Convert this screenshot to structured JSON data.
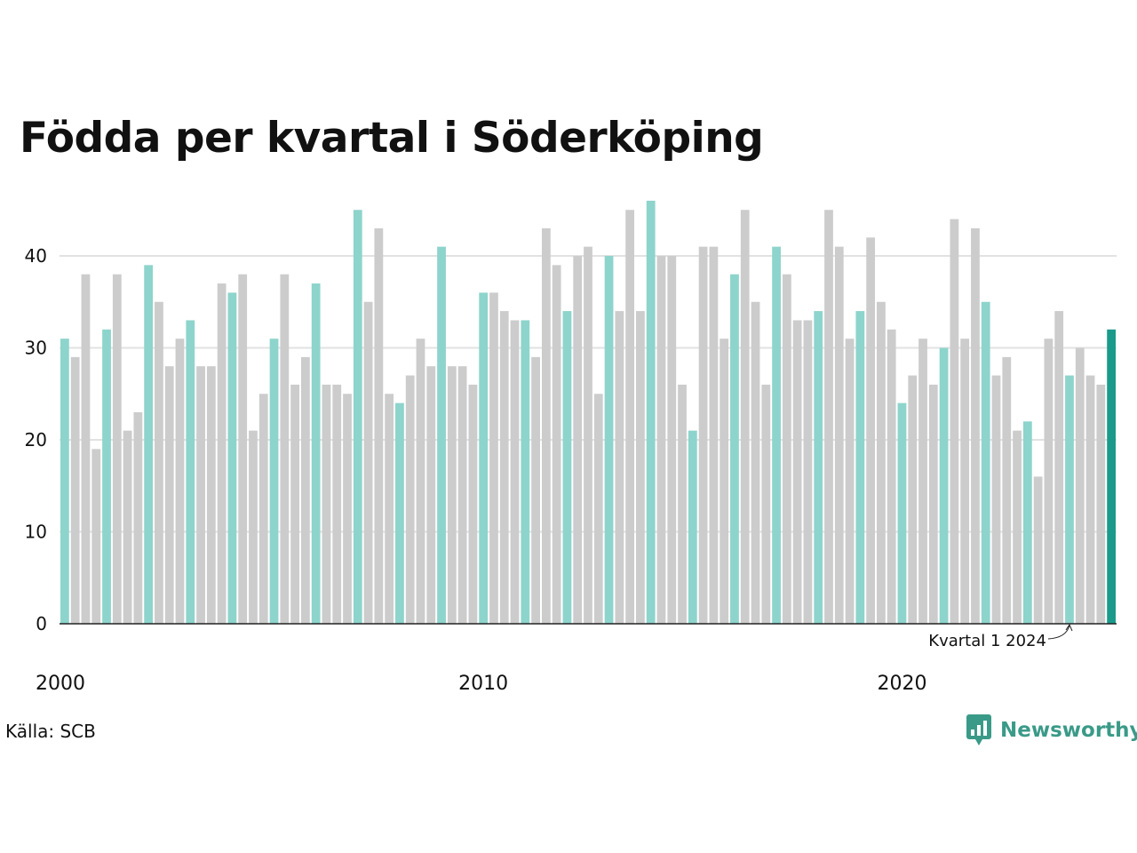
{
  "title": "Födda per kvartal i Söderköping",
  "source": "Källa: SCB",
  "logo_text": "Newsworthy",
  "colors": {
    "q1": "#8dd4cc",
    "other": "#cccccc",
    "latest": "#1a9a8a",
    "axis": "#222222",
    "grid": "#e2e2e2"
  },
  "chart_data": {
    "type": "bar",
    "ylim": [
      0,
      46
    ],
    "yticks": [
      0,
      10,
      20,
      30,
      40
    ],
    "xticks": [
      "2000",
      "2010",
      "2020"
    ],
    "grid": true,
    "annotation": {
      "text": "Kvartal 1 2024"
    },
    "periods": [
      "2000 Q1",
      "2000 Q2",
      "2000 Q3",
      "2000 Q4",
      "2001 Q1",
      "2001 Q2",
      "2001 Q3",
      "2001 Q4",
      "2002 Q1",
      "2002 Q2",
      "2002 Q3",
      "2002 Q4",
      "2003 Q1",
      "2003 Q2",
      "2003 Q3",
      "2003 Q4",
      "2004 Q1",
      "2004 Q2",
      "2004 Q3",
      "2004 Q4",
      "2005 Q1",
      "2005 Q2",
      "2005 Q3",
      "2005 Q4",
      "2006 Q1",
      "2006 Q2",
      "2006 Q3",
      "2006 Q4",
      "2007 Q1",
      "2007 Q2",
      "2007 Q3",
      "2007 Q4",
      "2008 Q1",
      "2008 Q2",
      "2008 Q3",
      "2008 Q4",
      "2009 Q1",
      "2009 Q2",
      "2009 Q3",
      "2009 Q4",
      "2010 Q1",
      "2010 Q2",
      "2010 Q3",
      "2010 Q4",
      "2011 Q1",
      "2011 Q2",
      "2011 Q3",
      "2011 Q4",
      "2012 Q1",
      "2012 Q2",
      "2012 Q3",
      "2012 Q4",
      "2013 Q1",
      "2013 Q2",
      "2013 Q3",
      "2013 Q4",
      "2014 Q1",
      "2014 Q2",
      "2014 Q3",
      "2014 Q4",
      "2015 Q1",
      "2015 Q2",
      "2015 Q3",
      "2015 Q4",
      "2016 Q1",
      "2016 Q2",
      "2016 Q3",
      "2016 Q4",
      "2017 Q1",
      "2017 Q2",
      "2017 Q3",
      "2017 Q4",
      "2018 Q1",
      "2018 Q2",
      "2018 Q3",
      "2018 Q4",
      "2019 Q1",
      "2019 Q2",
      "2019 Q3",
      "2019 Q4",
      "2020 Q1",
      "2020 Q2",
      "2020 Q3",
      "2020 Q4",
      "2021 Q1",
      "2021 Q2",
      "2021 Q3",
      "2021 Q4",
      "2022 Q1",
      "2022 Q2",
      "2022 Q3",
      "2022 Q4",
      "2023 Q1",
      "2023 Q2",
      "2023 Q3",
      "2023 Q4",
      "2024 Q1",
      "2024 Q2",
      "2024 Q3",
      "2024 Q4",
      "2025 Q1"
    ],
    "values": [
      31,
      29,
      38,
      19,
      32,
      38,
      21,
      23,
      39,
      35,
      28,
      31,
      33,
      28,
      28,
      37,
      36,
      38,
      21,
      25,
      31,
      38,
      26,
      29,
      37,
      26,
      26,
      25,
      45,
      35,
      43,
      25,
      24,
      27,
      31,
      28,
      41,
      28,
      28,
      26,
      36,
      36,
      34,
      33,
      33,
      29,
      43,
      39,
      34,
      40,
      41,
      25,
      40,
      34,
      45,
      34,
      46,
      40,
      40,
      26,
      21,
      41,
      41,
      31,
      38,
      45,
      35,
      26,
      41,
      38,
      33,
      33,
      34,
      45,
      41,
      31,
      34,
      42,
      35,
      32,
      24,
      27,
      31,
      26,
      30,
      44,
      31,
      43,
      35,
      27,
      29,
      21,
      22,
      16,
      31,
      34,
      27,
      30,
      27,
      26,
      32
    ]
  }
}
